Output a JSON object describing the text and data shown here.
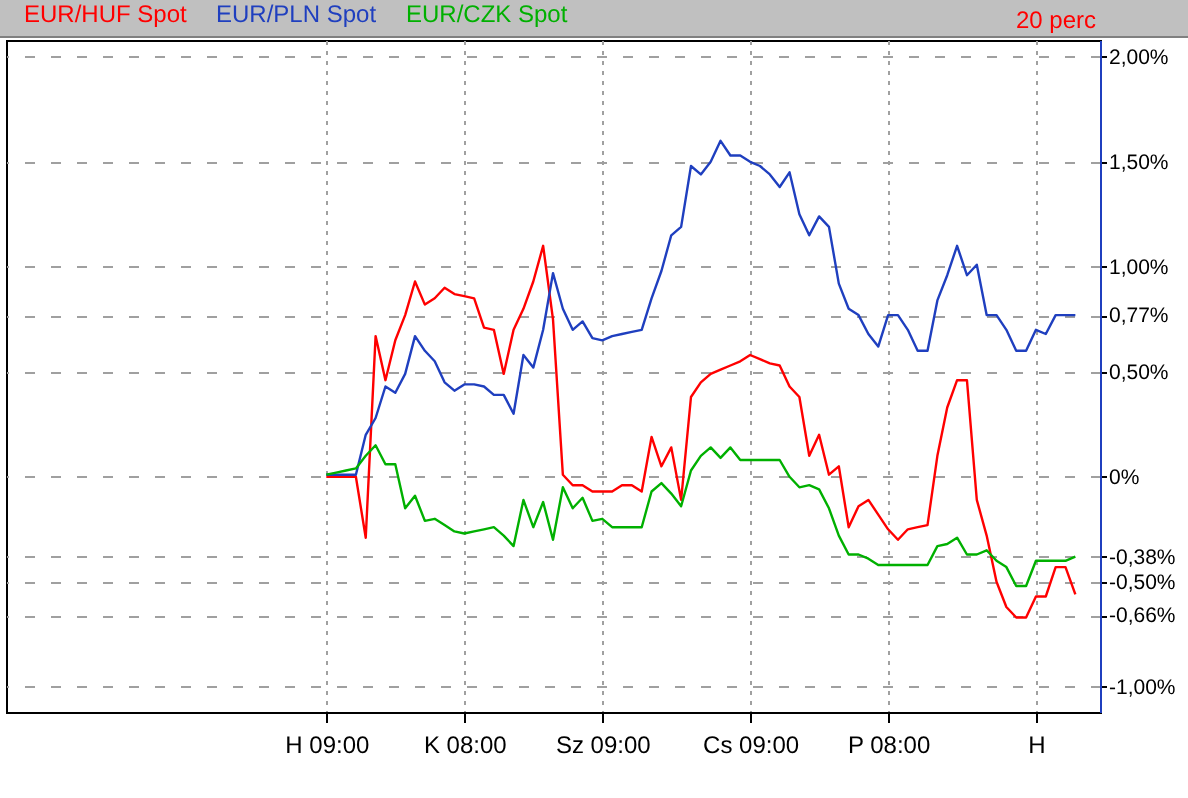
{
  "chart_data": {
    "type": "line",
    "annotations": [
      "20 perc"
    ],
    "categories": [
      null,
      null,
      null,
      null,
      null,
      null,
      null,
      null,
      null,
      null,
      null,
      null,
      null,
      null,
      null,
      null,
      null,
      null,
      null,
      null,
      null,
      null,
      null,
      null,
      null,
      null,
      null,
      null,
      null,
      null,
      null,
      null,
      "H 09:00",
      null,
      null,
      null,
      null,
      null,
      null,
      null,
      null,
      null,
      null,
      null,
      null,
      null,
      "K 08:00",
      null,
      null,
      null,
      null,
      null,
      null,
      null,
      null,
      null,
      null,
      null,
      null,
      null,
      "Sz 09:00",
      null,
      null,
      null,
      null,
      null,
      null,
      null,
      null,
      null,
      null,
      null,
      null,
      null,
      null,
      "Cs 09:00",
      null,
      null,
      null,
      null,
      null,
      null,
      null,
      null,
      null,
      null,
      null,
      null,
      null,
      "P 08:00",
      null,
      null,
      null,
      null,
      null,
      null,
      null,
      null,
      null,
      null,
      null,
      null,
      null,
      null,
      "H",
      null,
      null,
      null,
      null,
      null,
      null
    ],
    "series": [
      {
        "name": "EUR/HUF Spot",
        "color": "#ff0000",
        "values": [
          null,
          null,
          null,
          null,
          null,
          null,
          null,
          null,
          null,
          null,
          null,
          null,
          null,
          null,
          null,
          null,
          null,
          null,
          null,
          null,
          null,
          null,
          null,
          null,
          null,
          null,
          null,
          null,
          null,
          null,
          null,
          null,
          0,
          0,
          0,
          0,
          -0.29,
          0.67,
          0.46,
          0.65,
          0.77,
          0.93,
          0.82,
          0.85,
          0.9,
          0.87,
          0.86,
          0.85,
          0.71,
          0.7,
          0.49,
          0.7,
          0.8,
          0.93,
          1.1,
          0.75,
          0.01,
          -0.04,
          -0.04,
          -0.07,
          -0.07,
          -0.07,
          -0.04,
          -0.04,
          -0.07,
          0.19,
          0.05,
          0.14,
          -0.11,
          0.38,
          0.45,
          0.49,
          0.51,
          0.53,
          0.55,
          0.58,
          0.56,
          0.54,
          0.53,
          0.43,
          0.38,
          0.1,
          0.2,
          0.01,
          0.05,
          -0.24,
          -0.14,
          -0.11,
          -0.18,
          -0.25,
          -0.3,
          -0.25,
          -0.24,
          -0.23,
          0.1,
          0.33,
          0.46,
          0.46,
          -0.11,
          -0.28,
          -0.5,
          -0.62,
          -0.67,
          -0.67,
          -0.57,
          -0.57,
          -0.43,
          -0.43,
          -0.56,
          null,
          null
        ]
      },
      {
        "name": "EUR/PLN Spot",
        "color": "#1f3fbf",
        "values": [
          null,
          null,
          null,
          null,
          null,
          null,
          null,
          null,
          null,
          null,
          null,
          null,
          null,
          null,
          null,
          null,
          null,
          null,
          null,
          null,
          null,
          null,
          null,
          null,
          null,
          null,
          null,
          null,
          null,
          null,
          null,
          null,
          0.01,
          0.01,
          0.01,
          0.01,
          0.2,
          0.28,
          0.43,
          0.4,
          0.49,
          0.67,
          0.6,
          0.55,
          0.45,
          0.41,
          0.44,
          0.44,
          0.43,
          0.39,
          0.39,
          0.3,
          0.58,
          0.52,
          0.7,
          0.97,
          0.8,
          0.7,
          0.74,
          0.66,
          0.65,
          0.67,
          0.68,
          0.69,
          0.7,
          0.85,
          0.98,
          1.15,
          1.19,
          1.48,
          1.44,
          1.5,
          1.6,
          1.53,
          1.53,
          1.5,
          1.48,
          1.44,
          1.38,
          1.45,
          1.25,
          1.15,
          1.24,
          1.19,
          0.92,
          0.8,
          0.77,
          0.68,
          0.62,
          0.77,
          0.77,
          0.7,
          0.6,
          0.6,
          0.84,
          0.96,
          1.1,
          0.96,
          1.01,
          0.77,
          0.77,
          0.7,
          0.6,
          0.6,
          0.7,
          0.68,
          0.77,
          0.77,
          0.77,
          null,
          null
        ]
      },
      {
        "name": "EUR/CZK Spot",
        "color": "#00b000",
        "values": [
          null,
          null,
          null,
          null,
          null,
          null,
          null,
          null,
          null,
          null,
          null,
          null,
          null,
          null,
          null,
          null,
          null,
          null,
          null,
          null,
          null,
          null,
          null,
          null,
          null,
          null,
          null,
          null,
          null,
          null,
          null,
          null,
          0.01,
          0.02,
          0.03,
          0.04,
          0.1,
          0.15,
          0.06,
          0.06,
          -0.15,
          -0.09,
          -0.21,
          -0.2,
          -0.23,
          -0.26,
          -0.27,
          -0.26,
          -0.25,
          -0.24,
          -0.28,
          -0.33,
          -0.11,
          -0.24,
          -0.12,
          -0.3,
          -0.05,
          -0.15,
          -0.1,
          -0.21,
          -0.2,
          -0.24,
          -0.24,
          -0.24,
          -0.24,
          -0.07,
          -0.03,
          -0.08,
          -0.14,
          0.03,
          0.1,
          0.14,
          0.09,
          0.14,
          0.08,
          0.08,
          0.08,
          0.08,
          0.08,
          0.0,
          -0.05,
          -0.04,
          -0.06,
          -0.15,
          -0.28,
          -0.37,
          -0.37,
          -0.39,
          -0.42,
          -0.42,
          -0.42,
          -0.42,
          -0.42,
          -0.42,
          -0.33,
          -0.32,
          -0.29,
          -0.37,
          -0.37,
          -0.35,
          -0.4,
          -0.43,
          -0.52,
          -0.52,
          -0.4,
          -0.4,
          -0.4,
          -0.4,
          -0.38,
          null,
          null
        ]
      }
    ],
    "ylim": [
      -1.12,
      2.08
    ],
    "yticks": [
      {
        "value": -1,
        "label": "-1,00%"
      },
      {
        "value": -0.66,
        "label": "-0,66%"
      },
      {
        "value": -0.5,
        "label": "-0,50%"
      },
      {
        "value": -0.38,
        "label": "-0,38%"
      },
      {
        "value": 0,
        "label": "0%"
      },
      {
        "value": 0.5,
        "label": "0,50%"
      },
      {
        "value": 0.77,
        "label": "0,77%"
      },
      {
        "value": 1,
        "label": "1,00%"
      },
      {
        "value": 1.5,
        "label": "1,50%"
      },
      {
        "value": 2,
        "label": "2,00%"
      }
    ],
    "grid": true,
    "legend": "top left",
    "line_style": "solid"
  }
}
